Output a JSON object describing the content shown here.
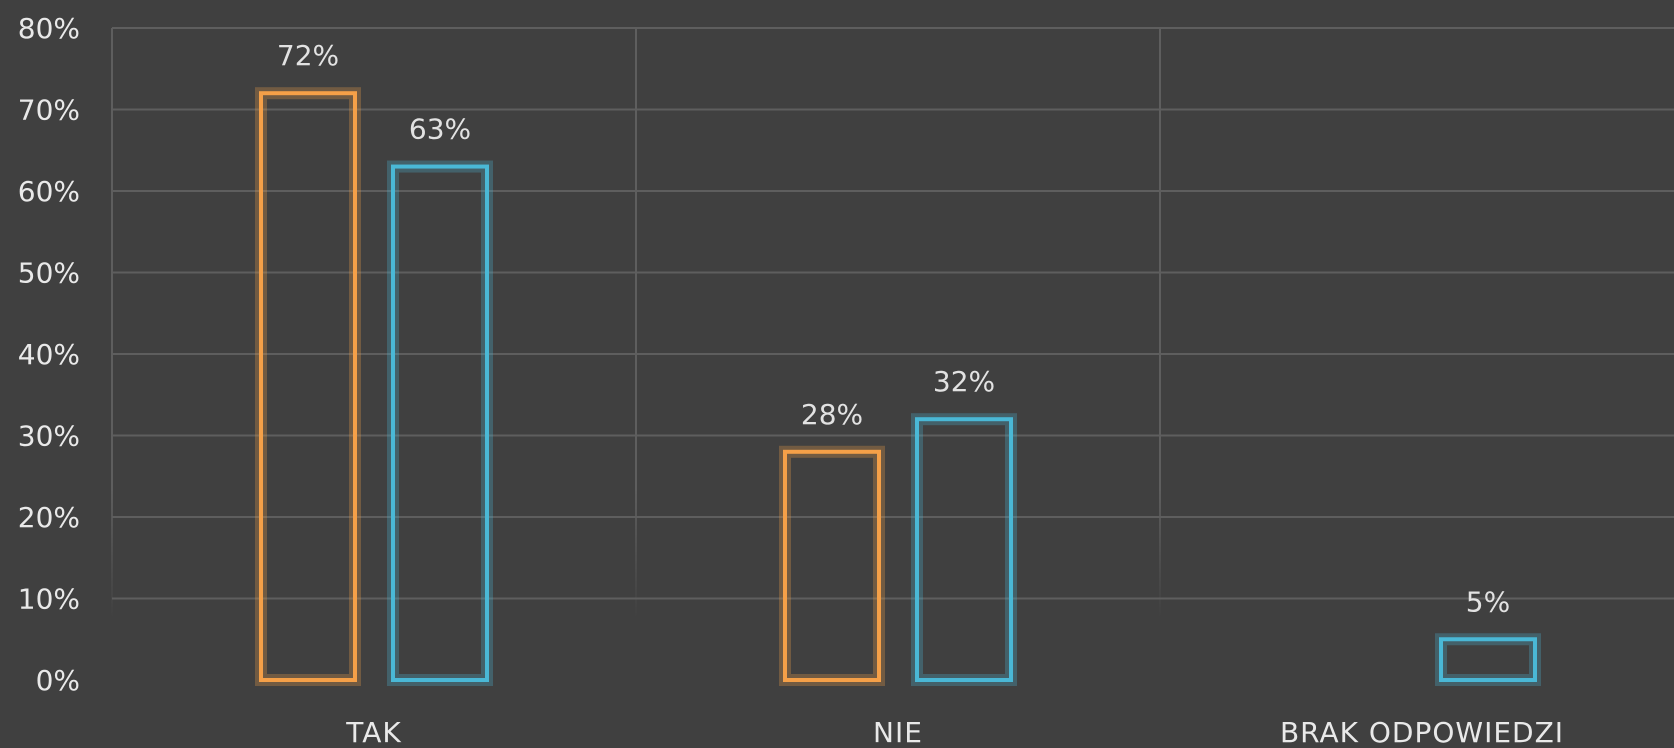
{
  "chart_data": {
    "type": "bar",
    "categories": [
      "TAK",
      "NIE",
      "BRAK ODPOWIEDZI"
    ],
    "series": [
      {
        "values": [
          72,
          28,
          null
        ],
        "color": "#f5a048"
      },
      {
        "values": [
          63,
          32,
          5
        ],
        "color": "#4ab8d6"
      }
    ],
    "data_labels": [
      [
        "72%",
        "28%",
        null
      ],
      [
        "63%",
        "32%",
        "5%"
      ]
    ],
    "y_ticks": [
      "0%",
      "10%",
      "20%",
      "30%",
      "40%",
      "50%",
      "60%",
      "70%",
      "80%"
    ],
    "ylim": [
      0,
      80
    ],
    "grid": true,
    "background": "#404040"
  }
}
